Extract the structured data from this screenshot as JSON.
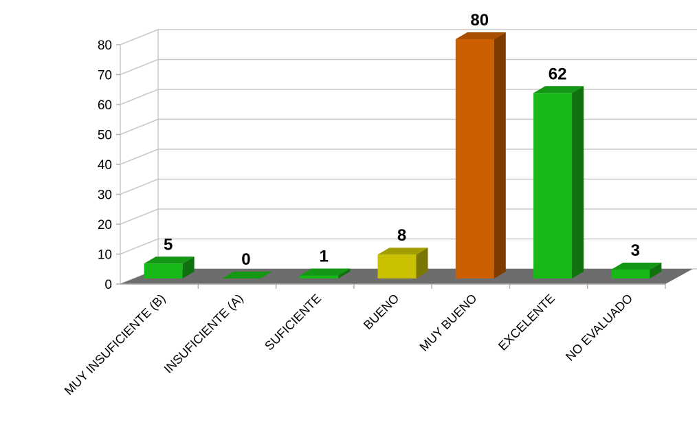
{
  "chart_data": {
    "type": "bar",
    "categories": [
      "MUY INSUFICIENTE (B)",
      "INSUFICIENTE (A)",
      "SUFICIENTE",
      "BUENO",
      "MUY BUENO",
      "EXCELENTE",
      "NO EVALUADO"
    ],
    "values": [
      5,
      0,
      1,
      8,
      80,
      62,
      3
    ],
    "colors": [
      "#18b818",
      "#18b818",
      "#18b818",
      "#c8c000",
      "#cc5f00",
      "#18b818",
      "#18b818"
    ],
    "ylim": [
      0,
      80
    ],
    "ticks": [
      0,
      10,
      20,
      30,
      40,
      50,
      60,
      70,
      80
    ],
    "grid": true,
    "three_d": true
  }
}
